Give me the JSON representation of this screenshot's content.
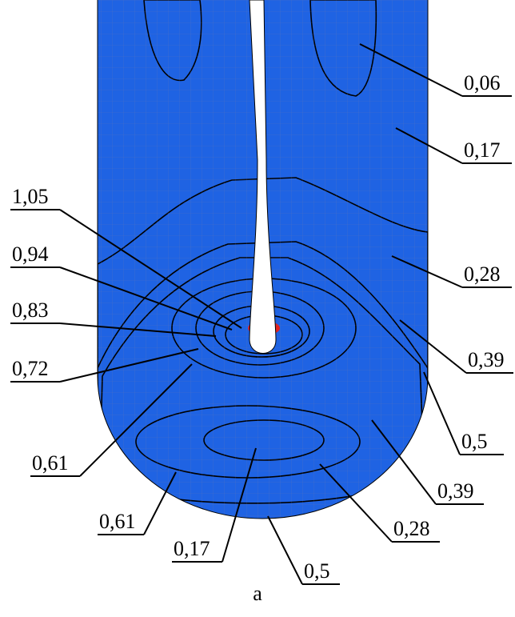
{
  "labels": [
    {
      "text": "0,06"
    },
    {
      "text": "0,17"
    },
    {
      "text": "0,28"
    },
    {
      "text": "0,39"
    },
    {
      "text": "0,5"
    },
    {
      "text": "0,39"
    },
    {
      "text": "0,28"
    },
    {
      "text": "0,5"
    },
    {
      "text": "0,17"
    },
    {
      "text": "0,61"
    },
    {
      "text": "1,05"
    },
    {
      "text": "0,94"
    },
    {
      "text": "0,83"
    },
    {
      "text": "0,72"
    },
    {
      "text": "0,61"
    }
  ],
  "caption": "a"
}
